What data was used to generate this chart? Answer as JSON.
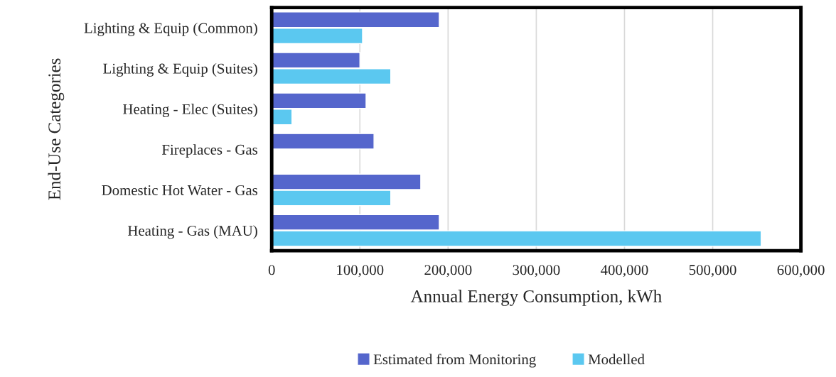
{
  "chart_data": {
    "type": "bar",
    "orientation": "horizontal",
    "xlabel": "Annual Energy Consumption, kWh",
    "ylabel": "End-Use Categories",
    "categories": [
      "Lighting & Equip (Common)",
      "Lighting & Equip (Suites)",
      "Heating - Elec (Suites)",
      "Fireplaces - Gas",
      "Domestic Hot Water - Gas",
      "Heating - Gas (MAU)"
    ],
    "series": [
      {
        "name": "Estimated from Monitoring",
        "color": "#5566cc",
        "values": [
          190000,
          100000,
          107000,
          116000,
          169000,
          190000
        ]
      },
      {
        "name": "Modelled",
        "color": "#5bc8f0",
        "values": [
          103000,
          135000,
          23000,
          null,
          135000,
          555000
        ]
      }
    ],
    "xlim": [
      0,
      600000
    ],
    "xticks": [
      {
        "value": 0,
        "label": "0"
      },
      {
        "value": 100000,
        "label": "100,000"
      },
      {
        "value": 200000,
        "label": "200,000"
      },
      {
        "value": 300000,
        "label": "300,000"
      },
      {
        "value": 400000,
        "label": "400,000"
      },
      {
        "value": 500000,
        "label": "500,000"
      },
      {
        "value": 600000,
        "label": "600,000"
      }
    ],
    "grid": "x",
    "legend": "bottom"
  }
}
